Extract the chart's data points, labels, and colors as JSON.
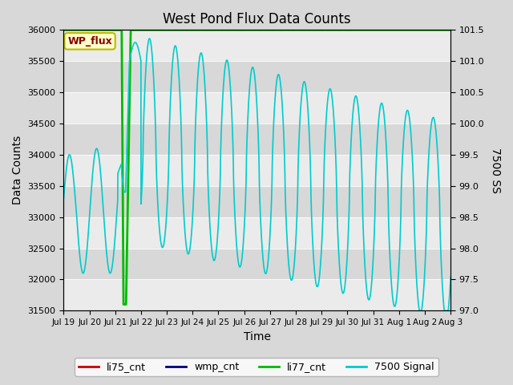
{
  "title": "West Pond Flux Data Counts",
  "xlabel": "Time",
  "ylabel_left": "Data Counts",
  "ylabel_right": "7500 SS",
  "ylim_left": [
    31500,
    36000
  ],
  "ylim_right": [
    97.0,
    101.5
  ],
  "fig_bg_color": "#e0e0e0",
  "plot_bg_color": "#e8e8e8",
  "band_colors": [
    "#e8e8e8",
    "#d4d4d4"
  ],
  "legend_labels": [
    "li75_cnt",
    "wmp_cnt",
    "li77_cnt",
    "7500 Signal"
  ],
  "legend_colors": [
    "#cc0000",
    "#000080",
    "#00bb00",
    "#00cccc"
  ],
  "annotation_text": "WP_flux",
  "annotation_color": "#880000",
  "annotation_bg": "#ffffcc",
  "annotation_border": "#bbbb00",
  "xtick_labels": [
    "Jul 19",
    "Jul 20",
    "Jul 21",
    "Jul 22",
    "Jul 23",
    "Jul 24",
    "Jul 25",
    "Jul 26",
    "Jul 27",
    "Jul 28",
    "Jul 29",
    "Jul 30",
    "Jul 31",
    "Aug 1",
    "Aug 2",
    "Aug 3"
  ],
  "ytick_left": [
    31500,
    32000,
    32500,
    33000,
    33500,
    34000,
    34500,
    35000,
    35500,
    36000
  ],
  "ytick_right": [
    97.0,
    97.5,
    98.0,
    98.5,
    99.0,
    99.5,
    100.0,
    100.5,
    101.0,
    101.5
  ]
}
